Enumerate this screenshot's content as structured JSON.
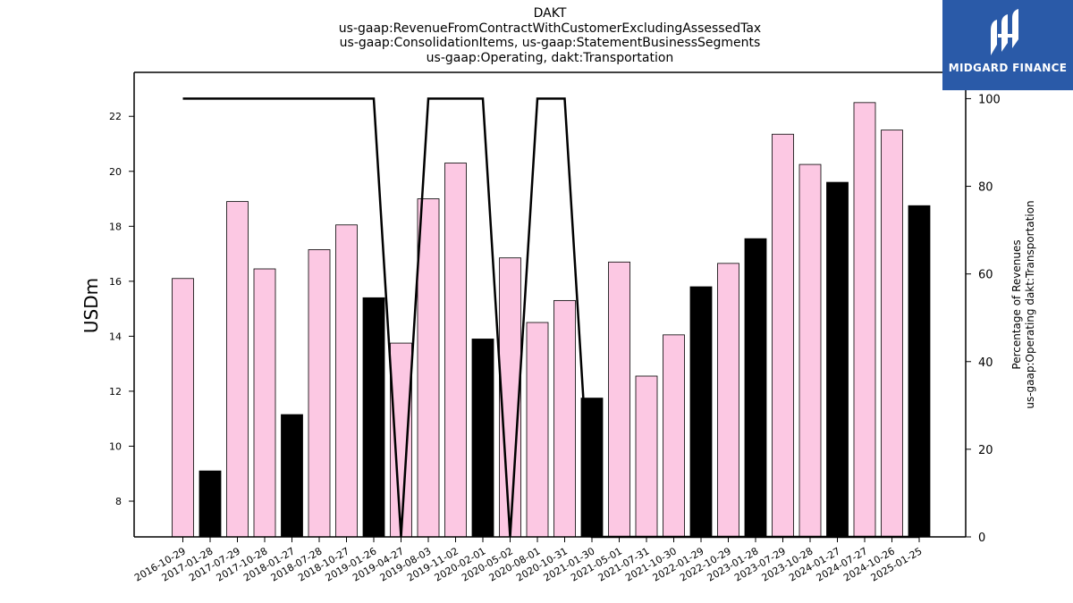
{
  "title_lines": [
    "DAKT",
    "us-gaap:RevenueFromContractWithCustomerExcludingAssessedTax",
    "us-gaap:ConsolidationItems, us-gaap:StatementBusinessSegments",
    "us-gaap:Operating, dakt:Transportation"
  ],
  "logo": {
    "text": "MIDGARD FINANCE"
  },
  "colors": {
    "bar_light": "#fcc8e3",
    "bar_dark": "#000000",
    "line": "#000000",
    "logo_bg": "#2a5aa8"
  },
  "chart_data": {
    "type": "bar",
    "categories": [
      "2016-10-29",
      "2017-01-28",
      "2017-07-29",
      "2017-10-28",
      "2018-01-27",
      "2018-07-28",
      "2018-10-27",
      "2019-01-26",
      "2019-04-27",
      "2019-08-03",
      "2019-11-02",
      "2020-02-01",
      "2020-05-02",
      "2020-08-01",
      "2020-10-31",
      "2021-01-30",
      "2021-05-01",
      "2021-07-31",
      "2021-10-30",
      "2022-01-29",
      "2022-10-29",
      "2023-01-28",
      "2023-07-29",
      "2023-10-28",
      "2024-01-27",
      "2024-07-27",
      "2024-10-26",
      "2025-01-25"
    ],
    "series": [
      {
        "type": "bar",
        "axis": "left",
        "values": [
          16.1,
          9.1,
          18.9,
          16.45,
          11.15,
          17.15,
          18.05,
          15.4,
          13.75,
          19.0,
          20.3,
          13.9,
          16.85,
          14.5,
          15.3,
          11.75,
          16.7,
          12.55,
          14.05,
          15.8,
          16.65,
          17.55,
          21.35,
          20.25,
          19.6,
          22.5,
          21.5,
          18.75
        ],
        "highlight": [
          false,
          true,
          false,
          false,
          true,
          false,
          false,
          true,
          false,
          false,
          false,
          true,
          false,
          false,
          false,
          true,
          false,
          false,
          false,
          true,
          false,
          true,
          false,
          false,
          true,
          false,
          false,
          true
        ]
      },
      {
        "type": "line",
        "axis": "right",
        "values": [
          100,
          100,
          100,
          100,
          100,
          100,
          100,
          100,
          0,
          100,
          100,
          100,
          0,
          100,
          100,
          0,
          0,
          0,
          0,
          0,
          0,
          0,
          0,
          0,
          0,
          0,
          0,
          0
        ]
      }
    ],
    "ylabel": "USDm",
    "y2label_lines": [
      "Percentage of Revenues",
      "us-gaap:Operating dakt:Transportation"
    ],
    "ylim": [
      6.7,
      23.6
    ],
    "y2lim": [
      0,
      106
    ],
    "yticks": [
      8,
      10,
      12,
      14,
      16,
      18,
      20,
      22
    ],
    "y2ticks": [
      0,
      20,
      40,
      60,
      80,
      100
    ]
  }
}
